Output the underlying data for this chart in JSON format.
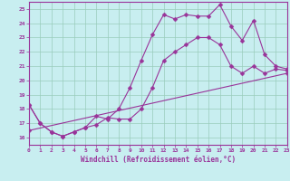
{
  "xlabel": "Windchill (Refroidissement éolien,°C)",
  "xlim": [
    0,
    23
  ],
  "ylim": [
    15.5,
    25.5
  ],
  "yticks": [
    16,
    17,
    18,
    19,
    20,
    21,
    22,
    23,
    24,
    25
  ],
  "xticks": [
    0,
    1,
    2,
    3,
    4,
    5,
    6,
    7,
    8,
    9,
    10,
    11,
    12,
    13,
    14,
    15,
    16,
    17,
    18,
    19,
    20,
    21,
    22,
    23
  ],
  "bg_color": "#c8eef0",
  "line_color": "#993399",
  "grid_color": "#99ccbb",
  "line1_x": [
    0,
    1,
    2,
    3,
    4,
    5,
    6,
    7,
    8,
    9,
    10,
    11,
    12,
    13,
    14,
    15,
    16,
    17,
    18,
    19,
    20,
    21,
    22,
    23
  ],
  "line1_y": [
    18.3,
    17.0,
    16.4,
    16.1,
    16.4,
    16.7,
    17.5,
    17.3,
    18.0,
    19.5,
    21.4,
    23.2,
    24.6,
    24.3,
    24.6,
    24.5,
    24.5,
    25.3,
    23.8,
    22.8,
    24.2,
    21.8,
    21.0,
    20.8
  ],
  "line2_x": [
    0,
    1,
    2,
    3,
    4,
    5,
    6,
    7,
    8,
    9,
    10,
    11,
    12,
    13,
    14,
    15,
    16,
    17,
    18,
    19,
    20,
    21,
    22,
    23
  ],
  "line2_y": [
    18.3,
    17.0,
    16.4,
    16.1,
    16.4,
    16.7,
    16.9,
    17.4,
    17.3,
    17.3,
    18.0,
    19.5,
    21.4,
    22.0,
    22.5,
    23.0,
    23.0,
    22.5,
    21.0,
    20.5,
    21.0,
    20.5,
    20.8,
    20.7
  ],
  "line3_x": [
    0,
    23
  ],
  "line3_y": [
    16.5,
    20.5
  ]
}
